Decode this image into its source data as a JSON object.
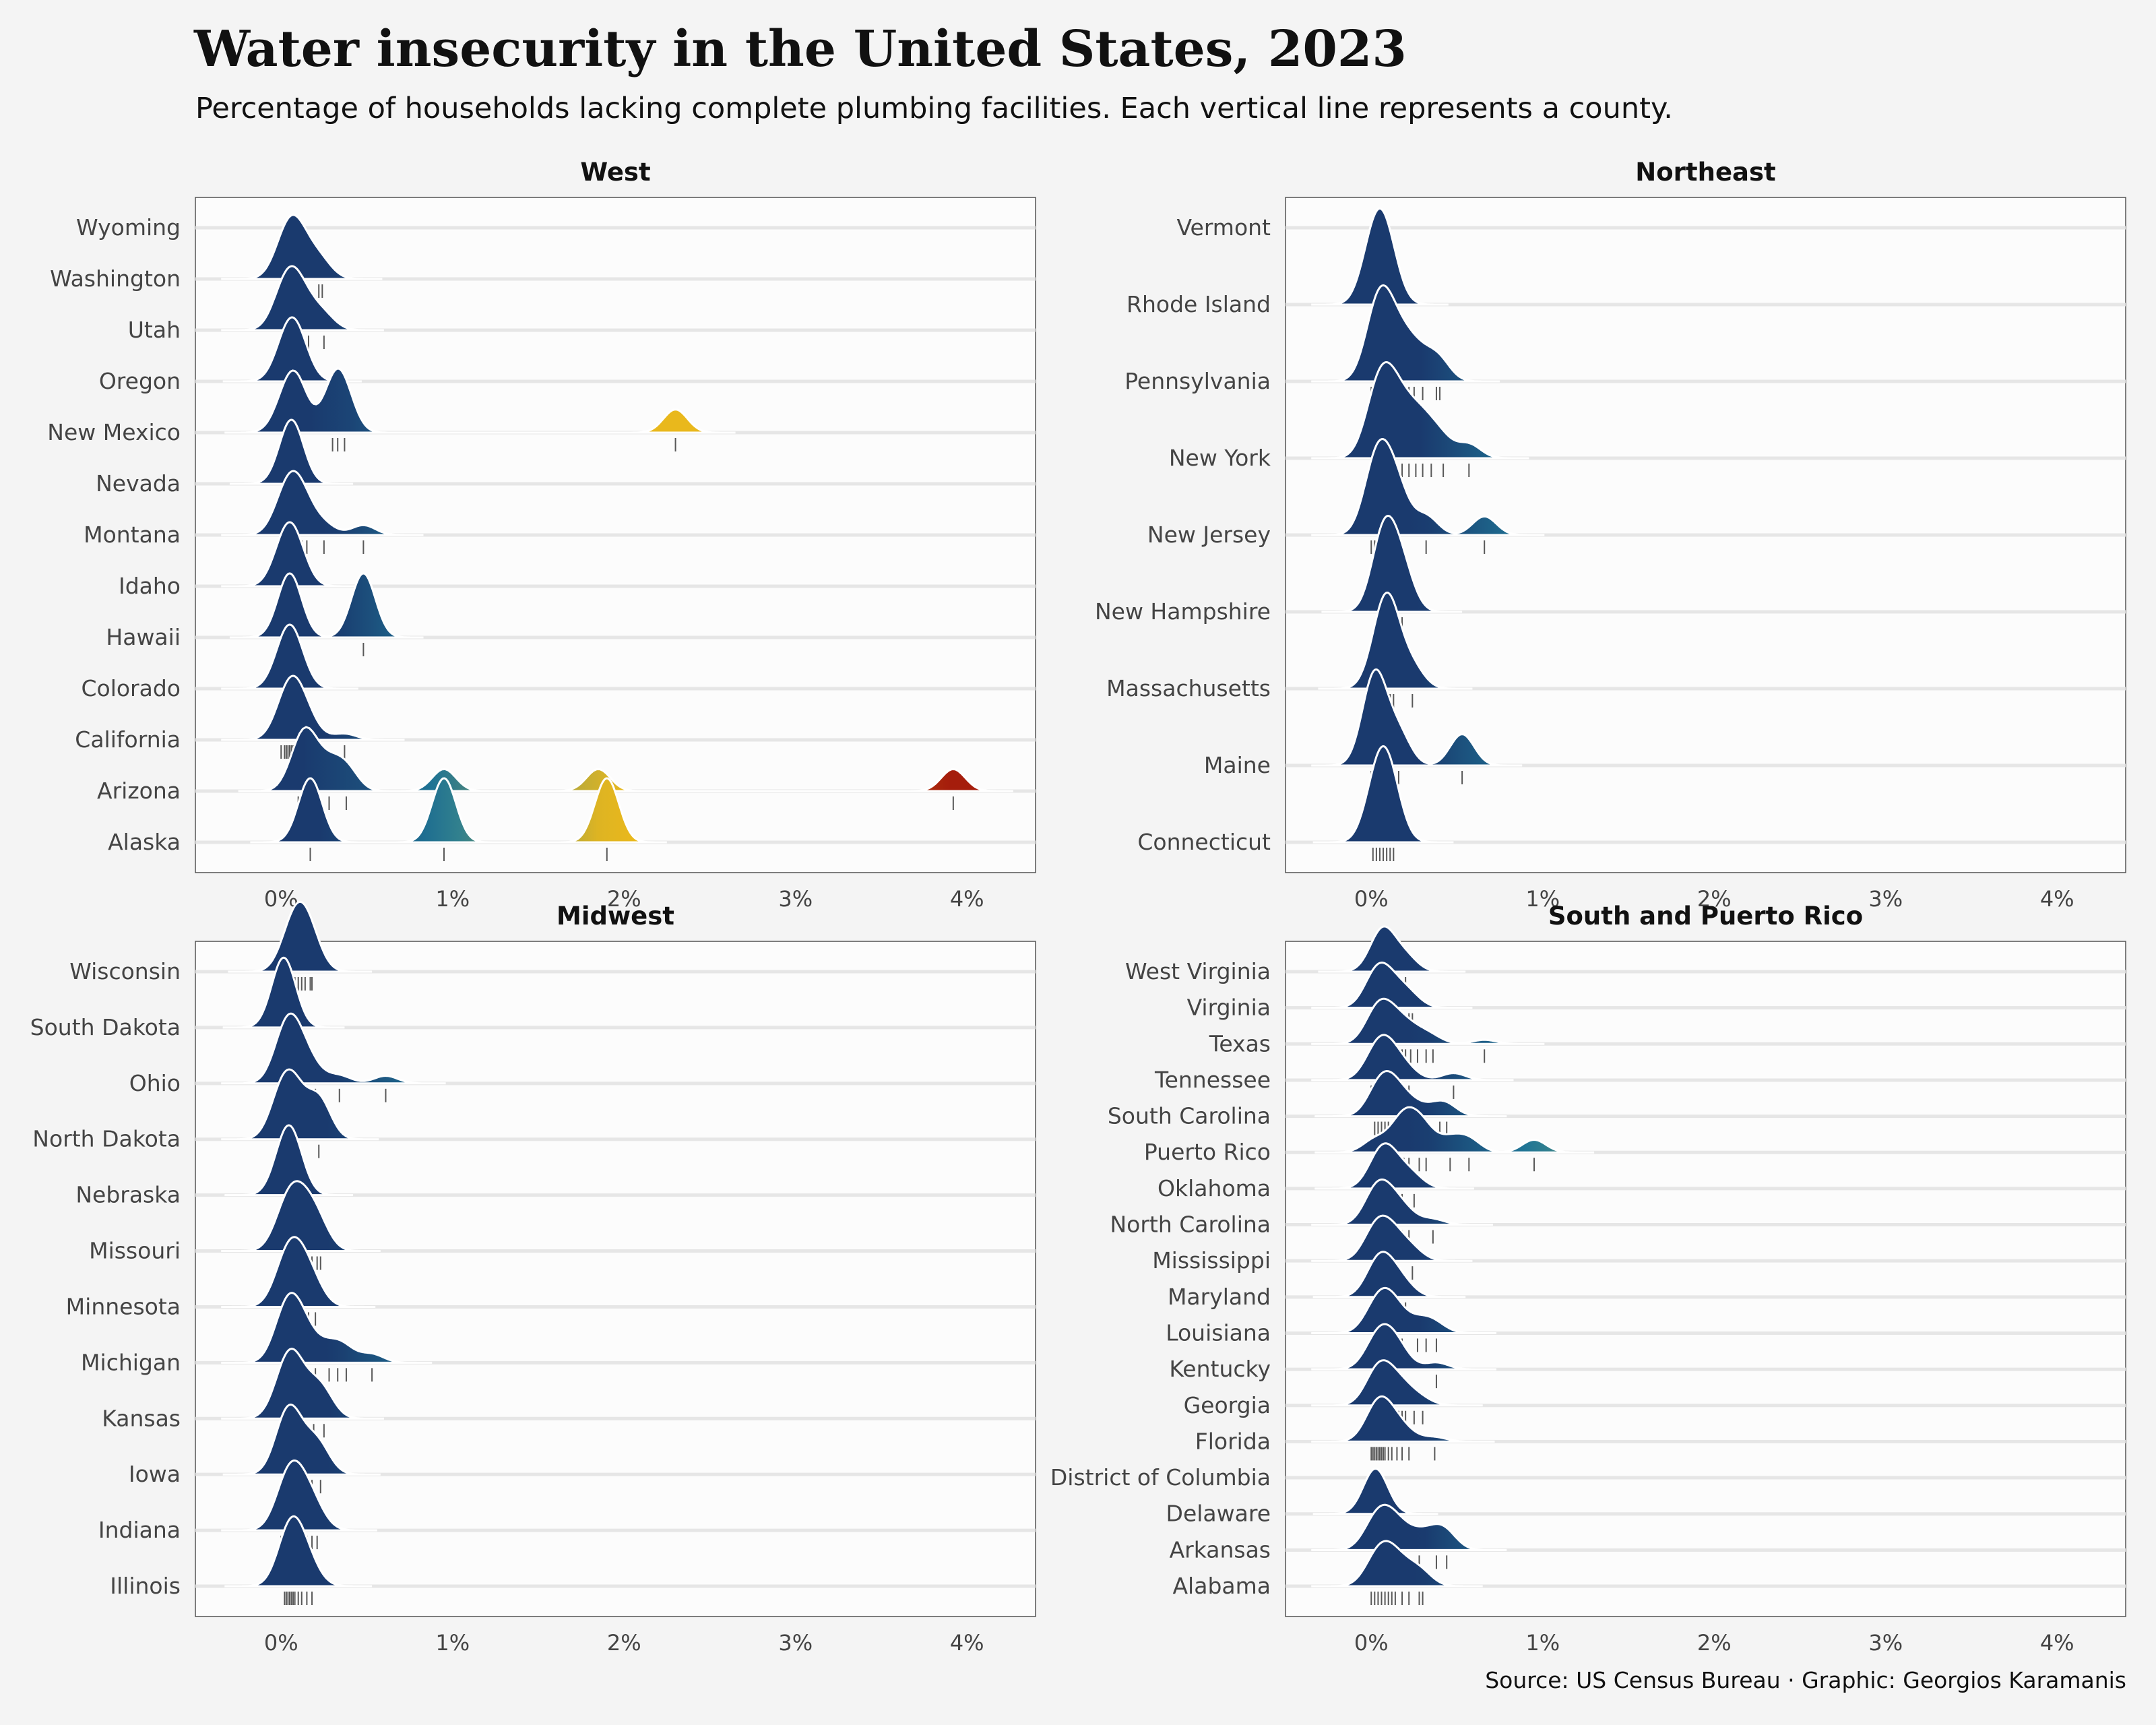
{
  "title": "Water insecurity in the United States, 2023",
  "subtitle": "Percentage of households lacking complete plumbing facilities. Each vertical line represents a county.",
  "source": "Source: US Census Bureau · Graphic: Georgios Karamanis",
  "colors": {
    "low": "#1a3a6e",
    "mid": "#1f7a99",
    "high": "#e9b81c",
    "max": "#a51c0c",
    "background": "#f4f4f4",
    "panel": "#fcfcfc",
    "gridline": "#e6e6e6",
    "rug": "#222222"
  },
  "chart_data": [
    {
      "type": "ridgeline",
      "title": "West",
      "xlim": [
        -0.5,
        4.4
      ],
      "xticks": [
        0,
        1,
        2,
        3,
        4
      ],
      "xtick_labels": [
        "0%",
        "1%",
        "2%",
        "3%",
        "4%"
      ],
      "states": [
        {
          "name": "Wyoming",
          "values": []
        },
        {
          "name": "Washington",
          "values": [
            0.0,
            0.02,
            0.04,
            0.05,
            0.06,
            0.08,
            0.1,
            0.12,
            0.15,
            0.22,
            0.24
          ]
        },
        {
          "name": "Utah",
          "values": [
            0.0,
            0.02,
            0.05,
            0.08,
            0.1,
            0.16,
            0.25
          ]
        },
        {
          "name": "Oregon",
          "values": [
            0.01,
            0.03,
            0.05,
            0.06,
            0.08,
            0.1,
            0.12
          ]
        },
        {
          "name": "New Mexico",
          "values": [
            0.02,
            0.08,
            0.1,
            0.3,
            0.33,
            0.37,
            2.3
          ]
        },
        {
          "name": "Nevada",
          "values": [
            0.05,
            0.07
          ]
        },
        {
          "name": "Montana",
          "values": [
            0.0,
            0.02,
            0.04,
            0.06,
            0.08,
            0.1,
            0.12,
            0.15,
            0.25,
            0.48
          ]
        },
        {
          "name": "Idaho",
          "values": [
            0.0,
            0.02,
            0.04,
            0.06,
            0.08,
            0.1
          ]
        },
        {
          "name": "Hawaii",
          "values": [
            0.05,
            0.48
          ]
        },
        {
          "name": "Colorado",
          "values": [
            0.0,
            0.02,
            0.03,
            0.04,
            0.05,
            0.06,
            0.07,
            0.08,
            0.1
          ]
        },
        {
          "name": "California",
          "values": [
            0.0,
            0.02,
            0.03,
            0.04,
            0.05,
            0.06,
            0.07,
            0.08,
            0.09,
            0.1,
            0.12,
            0.15,
            0.18,
            0.37
          ]
        },
        {
          "name": "Arizona",
          "values": [
            0.1,
            0.14,
            0.17,
            0.28,
            0.38,
            0.95,
            1.85,
            3.92
          ]
        },
        {
          "name": "Alaska",
          "values": [
            0.17,
            0.95,
            1.9
          ]
        }
      ]
    },
    {
      "type": "ridgeline",
      "title": "Northeast",
      "xlim": [
        -0.5,
        4.4
      ],
      "xticks": [
        0,
        1,
        2,
        3,
        4
      ],
      "xtick_labels": [
        "0%",
        "1%",
        "2%",
        "3%",
        "4%"
      ],
      "states": [
        {
          "name": "Vermont",
          "values": [
            0.05
          ]
        },
        {
          "name": "Rhode Island",
          "values": [
            0.0,
            0.05,
            0.1
          ]
        },
        {
          "name": "Pennsylvania",
          "values": [
            0.0,
            0.02,
            0.03,
            0.04,
            0.05,
            0.06,
            0.08,
            0.1,
            0.12,
            0.15,
            0.18,
            0.22,
            0.25,
            0.3,
            0.38,
            0.4
          ]
        },
        {
          "name": "New York",
          "values": [
            0.0,
            0.02,
            0.04,
            0.06,
            0.08,
            0.1,
            0.12,
            0.15,
            0.18,
            0.22,
            0.26,
            0.3,
            0.35,
            0.42,
            0.57
          ]
        },
        {
          "name": "New Jersey",
          "values": [
            0.0,
            0.02,
            0.04,
            0.06,
            0.1,
            0.14,
            0.17,
            0.32,
            0.66
          ]
        },
        {
          "name": "New Hampshire",
          "values": [
            0.06,
            0.09,
            0.18
          ]
        },
        {
          "name": "Massachusetts",
          "values": [
            0.04,
            0.07,
            0.09,
            0.11,
            0.13,
            0.24
          ]
        },
        {
          "name": "Maine",
          "values": [
            0.0,
            0.02,
            0.04,
            0.16,
            0.53
          ]
        },
        {
          "name": "Connecticut",
          "values": [
            0.01,
            0.03,
            0.05,
            0.07,
            0.09,
            0.11,
            0.13
          ]
        }
      ]
    },
    {
      "type": "ridgeline",
      "title": "Midwest",
      "xlim": [
        -0.5,
        4.4
      ],
      "xticks": [
        0,
        1,
        2,
        3,
        4
      ],
      "xtick_labels": [
        "0%",
        "1%",
        "2%",
        "3%",
        "4%"
      ],
      "states": [
        {
          "name": "Wisconsin",
          "values": [
            0.04,
            0.06,
            0.08,
            0.1,
            0.12,
            0.14,
            0.17,
            0.18
          ]
        },
        {
          "name": "South Dakota",
          "values": [
            0.01,
            0.02
          ]
        },
        {
          "name": "Ohio",
          "values": [
            0.0,
            0.01,
            0.02,
            0.03,
            0.04,
            0.05,
            0.06,
            0.08,
            0.1,
            0.12,
            0.15,
            0.2,
            0.34,
            0.61
          ]
        },
        {
          "name": "North Dakota",
          "values": [
            0.0,
            0.08,
            0.22
          ]
        },
        {
          "name": "Nebraska",
          "values": [
            0.02,
            0.07
          ]
        },
        {
          "name": "Missouri",
          "values": [
            0.0,
            0.02,
            0.04,
            0.06,
            0.08,
            0.1,
            0.12,
            0.15,
            0.18,
            0.21,
            0.23
          ]
        },
        {
          "name": "Minnesota",
          "values": [
            0.0,
            0.02,
            0.04,
            0.06,
            0.08,
            0.1,
            0.13,
            0.16,
            0.2
          ]
        },
        {
          "name": "Michigan",
          "values": [
            0.0,
            0.01,
            0.02,
            0.04,
            0.05,
            0.06,
            0.08,
            0.1,
            0.12,
            0.15,
            0.2,
            0.28,
            0.33,
            0.38,
            0.53
          ]
        },
        {
          "name": "Kansas",
          "values": [
            0.0,
            0.04,
            0.07,
            0.09,
            0.19,
            0.25
          ]
        },
        {
          "name": "Iowa",
          "values": [
            0.01,
            0.03,
            0.06,
            0.08,
            0.18,
            0.23
          ]
        },
        {
          "name": "Indiana",
          "values": [
            0.0,
            0.02,
            0.04,
            0.05,
            0.06,
            0.08,
            0.1,
            0.12,
            0.15,
            0.18,
            0.21
          ]
        },
        {
          "name": "Illinois",
          "values": [
            0.02,
            0.03,
            0.04,
            0.05,
            0.06,
            0.07,
            0.08,
            0.1,
            0.12,
            0.15,
            0.18
          ]
        }
      ]
    },
    {
      "type": "ridgeline",
      "title": "South and Puerto Rico",
      "xlim": [
        -0.5,
        4.4
      ],
      "xticks": [
        0,
        1,
        2,
        3,
        4
      ],
      "xtick_labels": [
        "0%",
        "1%",
        "2%",
        "3%",
        "4%"
      ],
      "states": [
        {
          "name": "West Virginia",
          "values": [
            0.04,
            0.07,
            0.09,
            0.2
          ]
        },
        {
          "name": "Virginia",
          "values": [
            0.0,
            0.01,
            0.02,
            0.03,
            0.04,
            0.05,
            0.06,
            0.08,
            0.1,
            0.12,
            0.15,
            0.18,
            0.22,
            0.24
          ]
        },
        {
          "name": "Texas",
          "values": [
            0.0,
            0.01,
            0.02,
            0.03,
            0.04,
            0.05,
            0.06,
            0.07,
            0.08,
            0.1,
            0.12,
            0.14,
            0.16,
            0.18,
            0.2,
            0.23,
            0.27,
            0.32,
            0.36,
            0.66
          ]
        },
        {
          "name": "Tennessee",
          "values": [
            0.0,
            0.02,
            0.04,
            0.06,
            0.08,
            0.1,
            0.12,
            0.16,
            0.22,
            0.48
          ]
        },
        {
          "name": "South Carolina",
          "values": [
            0.02,
            0.04,
            0.06,
            0.08,
            0.1,
            0.13,
            0.16,
            0.2,
            0.28,
            0.4,
            0.44
          ]
        },
        {
          "name": "Puerto Rico",
          "values": [
            0.02,
            0.15,
            0.19,
            0.22,
            0.28,
            0.32,
            0.46,
            0.57,
            0.95
          ]
        },
        {
          "name": "Oklahoma",
          "values": [
            0.02,
            0.05,
            0.07,
            0.09,
            0.12,
            0.18,
            0.25
          ]
        },
        {
          "name": "North Carolina",
          "values": [
            0.0,
            0.01,
            0.02,
            0.03,
            0.04,
            0.06,
            0.08,
            0.1,
            0.12,
            0.15,
            0.18,
            0.22,
            0.36
          ]
        },
        {
          "name": "Mississippi",
          "values": [
            0.0,
            0.02,
            0.05,
            0.08,
            0.12,
            0.16,
            0.24
          ]
        },
        {
          "name": "Maryland",
          "values": [
            0.01,
            0.03,
            0.05,
            0.07,
            0.1,
            0.14,
            0.2
          ]
        },
        {
          "name": "Louisiana",
          "values": [
            0.0,
            0.02,
            0.04,
            0.06,
            0.08,
            0.1,
            0.12,
            0.14,
            0.18,
            0.27,
            0.32,
            0.38
          ]
        },
        {
          "name": "Kentucky",
          "values": [
            0.0,
            0.02,
            0.04,
            0.06,
            0.08,
            0.1,
            0.12,
            0.16,
            0.18,
            0.38
          ]
        },
        {
          "name": "Georgia",
          "values": [
            0.0,
            0.01,
            0.02,
            0.03,
            0.04,
            0.05,
            0.06,
            0.07,
            0.08,
            0.1,
            0.12,
            0.14,
            0.16,
            0.18,
            0.2,
            0.25,
            0.3
          ]
        },
        {
          "name": "Florida",
          "values": [
            0.0,
            0.01,
            0.02,
            0.03,
            0.04,
            0.05,
            0.06,
            0.07,
            0.08,
            0.1,
            0.12,
            0.15,
            0.18,
            0.22,
            0.37
          ]
        },
        {
          "name": "District of Columbia",
          "values": []
        },
        {
          "name": "Delaware",
          "values": [
            0.01,
            0.04
          ]
        },
        {
          "name": "Arkansas",
          "values": [
            0.0,
            0.04,
            0.08,
            0.12,
            0.18,
            0.28,
            0.38,
            0.44
          ]
        },
        {
          "name": "Alabama",
          "values": [
            0.0,
            0.02,
            0.04,
            0.06,
            0.08,
            0.1,
            0.12,
            0.14,
            0.18,
            0.22,
            0.28,
            0.3
          ]
        }
      ]
    }
  ]
}
